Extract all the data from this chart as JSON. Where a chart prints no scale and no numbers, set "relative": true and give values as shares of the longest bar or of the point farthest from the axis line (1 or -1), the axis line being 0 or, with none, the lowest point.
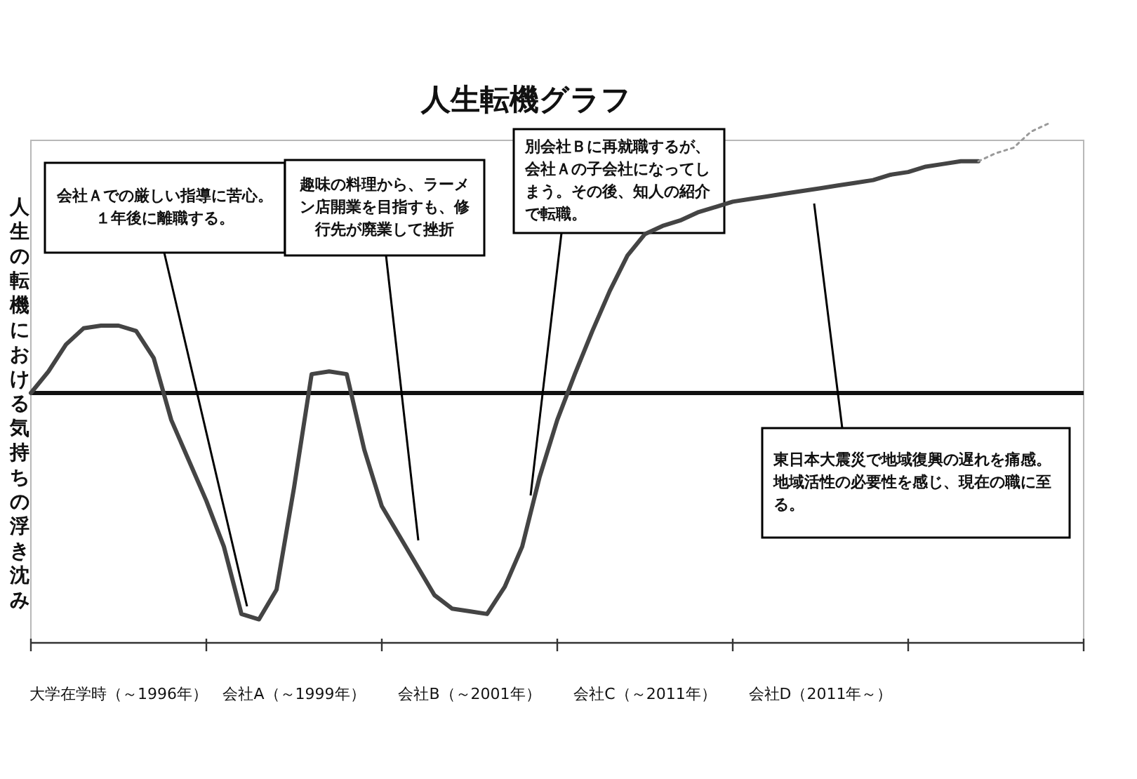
{
  "chart_data": {
    "type": "line",
    "relative": true,
    "title": "人生転機グラフ",
    "ylabel": "人生の転機における気持ちの浮き沈み",
    "marker": "none",
    "categories": [
      null,
      null,
      null,
      null,
      null,
      "大学在学時（～1996年）",
      null,
      null,
      null,
      null,
      null,
      null,
      null,
      null,
      null,
      "会社A（～1999年）",
      null,
      null,
      null,
      null,
      null,
      null,
      null,
      null,
      null,
      "会社B（～2001年）",
      null,
      null,
      null,
      null,
      null,
      null,
      null,
      null,
      null,
      "会社C（～2011年）",
      null,
      null,
      null,
      null,
      null,
      null,
      null,
      null,
      null,
      "会社D（2011年～）",
      null,
      null,
      null,
      null,
      null,
      null,
      null,
      null,
      null,
      null,
      null,
      null,
      null,
      null,
      null
    ],
    "series": [
      {
        "color": "#444444",
        "line_style": "solid",
        "values": [
          0,
          0.08,
          0.18,
          0.24,
          0.25,
          0.25,
          0.23,
          0.13,
          -0.1,
          -0.25,
          -0.4,
          -0.57,
          -0.82,
          -0.84,
          -0.73,
          -0.35,
          0.07,
          0.08,
          0.07,
          -0.21,
          -0.42,
          -0.53,
          -0.64,
          -0.75,
          -0.8,
          -0.81,
          -0.82,
          -0.72,
          -0.57,
          -0.31,
          -0.1,
          0.07,
          0.23,
          0.38,
          0.51,
          0.59,
          0.62,
          0.64,
          0.67,
          0.69,
          0.71,
          0.72,
          0.73,
          0.74,
          0.75,
          0.76,
          0.77,
          0.78,
          0.79,
          0.81,
          0.82,
          0.84,
          0.85,
          0.86,
          0.86,
          null,
          null,
          null,
          null,
          null,
          null
        ]
      },
      {
        "color": "#9a9a9a",
        "line_style": "dotted",
        "values": [
          null,
          null,
          null,
          null,
          null,
          null,
          null,
          null,
          null,
          null,
          null,
          null,
          null,
          null,
          null,
          null,
          null,
          null,
          null,
          null,
          null,
          null,
          null,
          null,
          null,
          null,
          null,
          null,
          null,
          null,
          null,
          null,
          null,
          null,
          null,
          null,
          null,
          null,
          null,
          null,
          null,
          null,
          null,
          null,
          null,
          null,
          null,
          null,
          null,
          null,
          null,
          null,
          null,
          null,
          0.86,
          0.89,
          0.91,
          0.97,
          1.0,
          null,
          null
        ]
      }
    ],
    "annotations": [
      "会社Ａでの厳しい指導に苦心。１年後に離職する。",
      "趣味の料理から、ラーメン店開業を目指すも、修行先が廃業して挫折",
      "別会社Ｂに再就職するが、会社Ａの子会社になってしまう。その後、知人の紹介で転職。",
      "東日本大震災で地域復興の遅れを痛感。地域活性の必要性を感じ、現在の職に至る。"
    ]
  }
}
